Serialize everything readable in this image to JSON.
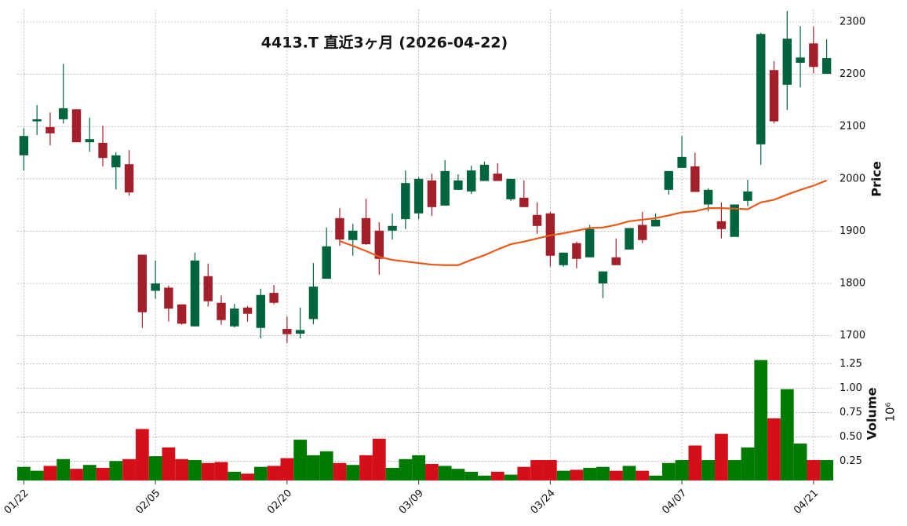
{
  "chart_data": {
    "type": "candlestick",
    "title": "4413.T  直近3ヶ月  (2026-04-22)",
    "categories": [
      "01/22",
      null,
      null,
      null,
      null,
      null,
      null,
      null,
      null,
      null,
      "02/05",
      null,
      null,
      null,
      null,
      null,
      null,
      null,
      null,
      null,
      "02/20",
      null,
      null,
      null,
      null,
      null,
      null,
      null,
      null,
      null,
      "03/09",
      null,
      null,
      null,
      null,
      null,
      null,
      null,
      null,
      null,
      "03/24",
      null,
      null,
      null,
      null,
      null,
      null,
      null,
      null,
      null,
      "04/07",
      null,
      null,
      null,
      null,
      null,
      null,
      null,
      null,
      null,
      "04/21",
      null
    ],
    "open": [
      2045,
      2110,
      2099,
      2114,
      2133,
      2070,
      2069,
      2022,
      2028,
      1855,
      1786,
      1792,
      1760,
      1718,
      1814,
      1763,
      1718,
      1754,
      1715,
      1782,
      1713,
      1704,
      1732,
      1809,
      1925,
      1883,
      1925,
      1901,
      1901,
      1923,
      1934,
      1997,
      1949,
      1979,
      1976,
      1996,
      2010,
      1961,
      1964,
      1931,
      1934,
      1835,
      1877,
      1850,
      1800,
      1850,
      1865,
      1912,
      1909,
      1979,
      2021,
      2024,
      1951,
      1919,
      1889,
      1958,
      2066,
      2208,
      2180,
      2222,
      2259,
      2201
    ],
    "high": [
      2097,
      2141,
      2127,
      2220,
      2133,
      2117,
      2102,
      2051,
      2055,
      1855,
      1844,
      1796,
      1760,
      1859,
      1838,
      1777,
      1761,
      1757,
      1790,
      1797,
      1737,
      1754,
      1839,
      1907,
      1944,
      1914,
      1962,
      1917,
      1934,
      2016,
      2003,
      2010,
      2036,
      2009,
      2025,
      2033,
      2030,
      2000,
      1997,
      1955,
      1937,
      1859,
      1880,
      1912,
      1823,
      1886,
      1906,
      1937,
      1934,
      2015,
      2082,
      2050,
      1982,
      1955,
      1951,
      1998,
      2279,
      2225,
      2321,
      2292,
      2291,
      2267
    ],
    "low": [
      2016,
      2084,
      2064,
      2106,
      2070,
      2052,
      2024,
      1980,
      1968,
      1715,
      1771,
      1727,
      1721,
      1718,
      1756,
      1721,
      1716,
      1727,
      1695,
      1760,
      1686,
      1695,
      1722,
      1809,
      1872,
      1853,
      1874,
      1817,
      1884,
      1904,
      1923,
      1929,
      1949,
      1979,
      1971,
      1996,
      1996,
      1958,
      1946,
      1895,
      1832,
      1832,
      1829,
      1850,
      1772,
      1835,
      1865,
      1877,
      1909,
      1970,
      2021,
      1975,
      1938,
      1886,
      1889,
      1948,
      2027,
      2106,
      2132,
      2175,
      2202,
      2201
    ],
    "close": [
      2082,
      2114,
      2087,
      2135,
      2070,
      2076,
      2040,
      2045,
      1974,
      1745,
      1800,
      1752,
      1723,
      1844,
      1766,
      1730,
      1752,
      1742,
      1778,
      1763,
      1703,
      1711,
      1794,
      1871,
      1884,
      1901,
      1875,
      1847,
      1910,
      1992,
      2000,
      1946,
      2015,
      1997,
      2016,
      2027,
      1996,
      2000,
      1946,
      1910,
      1853,
      1859,
      1847,
      1904,
      1823,
      1835,
      1906,
      1883,
      1922,
      2015,
      2042,
      1975,
      1979,
      1904,
      1951,
      1976,
      2277,
      2110,
      2268,
      2232,
      2214,
      2231
    ],
    "ma": {
      "color": "#e8591a",
      "values": [
        null,
        null,
        null,
        null,
        null,
        null,
        null,
        null,
        null,
        null,
        null,
        null,
        null,
        null,
        null,
        null,
        null,
        null,
        null,
        null,
        null,
        null,
        null,
        null,
        1881,
        1872,
        1862,
        1851,
        1845,
        1842,
        1839,
        1836,
        1835,
        1835,
        1845,
        1854,
        1865,
        1875,
        1880,
        1886,
        1892,
        1896,
        1901,
        1906,
        1907,
        1912,
        1919,
        1922,
        1925,
        1930,
        1936,
        1938,
        1944,
        1944,
        1943,
        1942,
        1955,
        1960,
        1970,
        1979,
        1987,
        1997
      ]
    },
    "volume": [
      0.19,
      0.15,
      0.2,
      0.27,
      0.17,
      0.21,
      0.18,
      0.25,
      0.27,
      0.58,
      0.3,
      0.39,
      0.27,
      0.26,
      0.23,
      0.24,
      0.14,
      0.12,
      0.19,
      0.2,
      0.28,
      0.47,
      0.31,
      0.35,
      0.23,
      0.21,
      0.31,
      0.48,
      0.18,
      0.27,
      0.31,
      0.22,
      0.2,
      0.17,
      0.14,
      0.1,
      0.14,
      0.11,
      0.19,
      0.26,
      0.26,
      0.15,
      0.16,
      0.18,
      0.19,
      0.15,
      0.2,
      0.15,
      0.1,
      0.23,
      0.26,
      0.41,
      0.26,
      0.53,
      0.26,
      0.39,
      1.29,
      0.69,
      0.99,
      0.43,
      0.26,
      0.26
    ],
    "ylabel": "Price",
    "y2label": "Volume",
    "y2_offset": "10⁶",
    "ylim": [
      1671,
      2324
    ],
    "yticks": [
      1700,
      1800,
      1900,
      2000,
      2100,
      2200,
      2300
    ],
    "y2lim": [
      0.05,
      1.36
    ],
    "y2ticks": [
      0.25,
      {
        "value": 0.5,
        "label": "0.50"
      },
      0.75,
      {
        "value": 1.0,
        "label": "1.00"
      },
      1.25
    ],
    "grid": true,
    "colors": {
      "up": "#00643c",
      "down": "#a31f2a",
      "volume_up": "#007a00",
      "volume_down": "#d40f1a"
    }
  }
}
